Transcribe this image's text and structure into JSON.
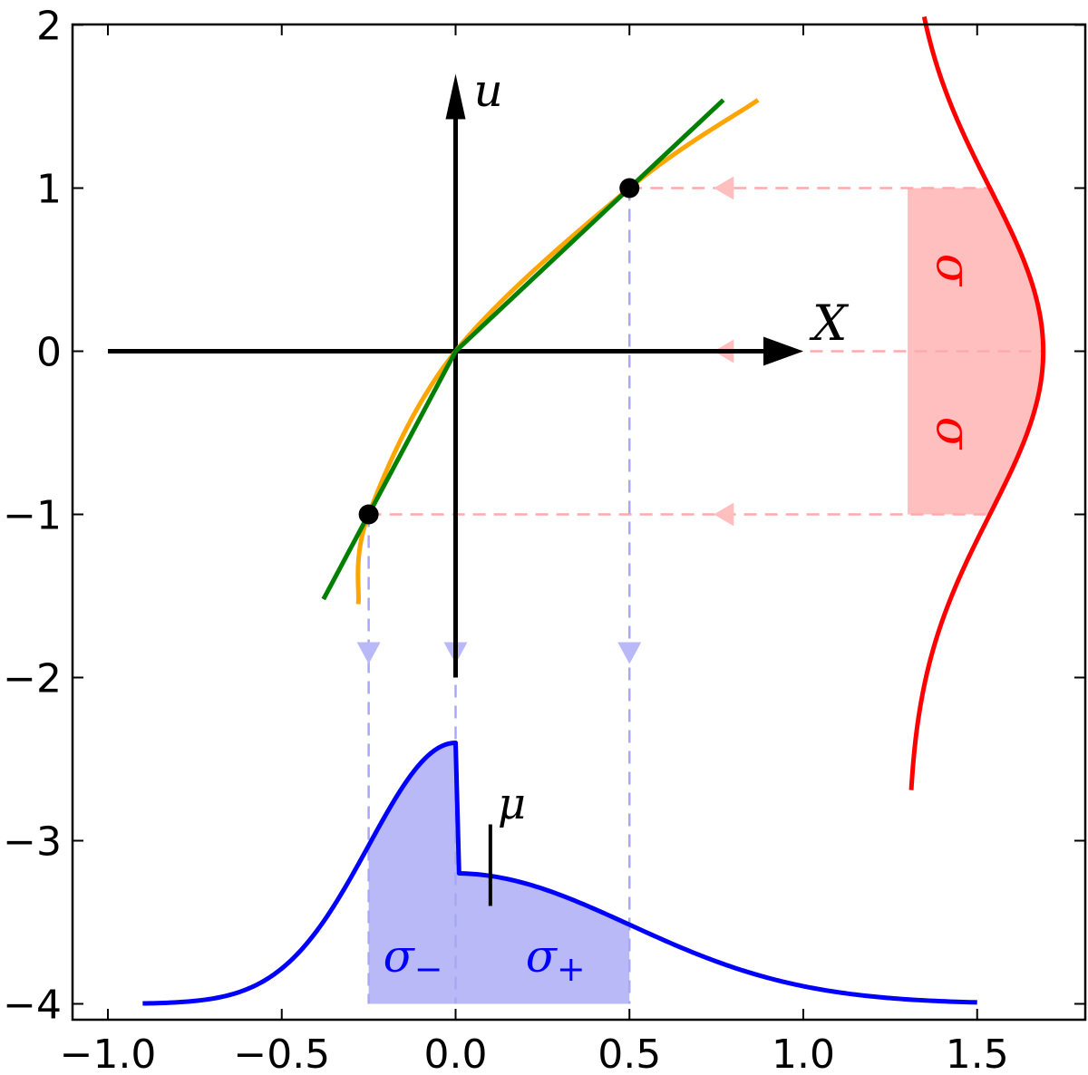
{
  "chart_data": {
    "type": "line",
    "xlim": [
      -1.1,
      1.72
    ],
    "ylim": [
      -4.1,
      2.0
    ],
    "x_ticks": [
      -1.0,
      -0.5,
      0.0,
      0.5,
      1.0,
      1.5
    ],
    "x_tick_labels": [
      "−1.0",
      "−0.5",
      "0.0",
      "0.5",
      "1.0",
      "1.5"
    ],
    "y_ticks": [
      2,
      1,
      0,
      -1,
      -2,
      -3,
      -4
    ],
    "y_tick_labels": [
      "2",
      "1",
      "0",
      "−1",
      "−2",
      "−3",
      "−4"
    ],
    "grid": false,
    "axis_u_label": "u",
    "axis_x_label": "X",
    "mu_label": "μ",
    "mu_x": 0.1,
    "sigma_label": "σ",
    "sigma_minus_label": "σ₋",
    "sigma_plus_label": "σ₊",
    "points": [
      {
        "x": -0.25,
        "y": -1
      },
      {
        "x": 0.5,
        "y": 1
      }
    ],
    "inner_axes": {
      "x_from": -1.0,
      "x_to": 1.0,
      "u_from": -2.0,
      "u_to": 1.7
    },
    "green_line": {
      "neg_slope": 4.0,
      "pos_slope": 2.0,
      "x_from": -0.38,
      "x_to": 0.77
    },
    "orange_curve": {
      "x_from": -0.28,
      "x_to": 0.87,
      "note_values": [
        [
          -0.28,
          -1.55
        ],
        [
          -0.25,
          -1.0
        ],
        [
          0,
          0
        ],
        [
          0.5,
          1.0
        ],
        [
          0.87,
          1.54
        ]
      ]
    },
    "red_gaussian": {
      "baseline_x": 1.3,
      "peak_x": 1.69,
      "center_u": 0,
      "sd_u": 1,
      "u_from": -2.7,
      "u_to": 2.05
    },
    "blue_distribution": {
      "baseline_y": -4.0,
      "sigma_minus": 0.25,
      "sigma_plus": 0.5,
      "peak_left_y": -2.4,
      "peak_right_y": -3.2,
      "x_from": -0.9,
      "x_to": 1.5
    },
    "colors": {
      "axes": "#000000",
      "orange": "#ffa500",
      "green": "#008000",
      "red": "#ff0000",
      "red_fill": "#ffbfbf",
      "red_dash": "#ffaaaa",
      "blue": "#0000ff",
      "blue_fill": "#b9b9f8",
      "blue_dash": "#a8a8f5"
    }
  }
}
